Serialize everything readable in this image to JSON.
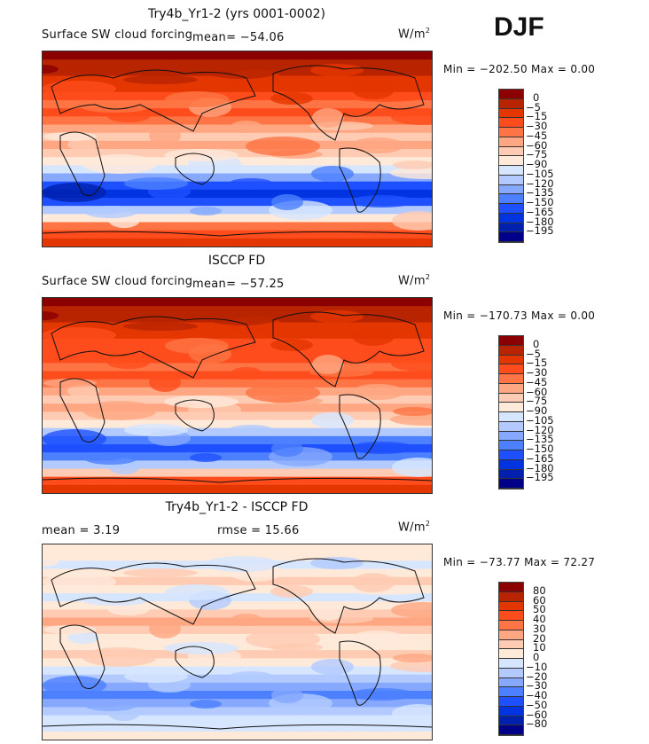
{
  "season": "DJF",
  "units": {
    "base": "W/m",
    "exp": "2"
  },
  "panels": [
    {
      "title": "Try4b_Yr1-2 (yrs 0001-0002)",
      "subtitle": "Surface SW cloud forcing",
      "mean": "mean= −54.06",
      "minmax": "Min = −202.50 Max =    0.00",
      "levels": [
        "0",
        "−5",
        "−15",
        "−30",
        "−45",
        "−60",
        "−75",
        "−90",
        "−105",
        "−120",
        "−135",
        "−150",
        "−165",
        "−180",
        "−195"
      ]
    },
    {
      "title": "ISCCP FD",
      "subtitle": "Surface SW cloud forcing",
      "mean": "mean= −57.25",
      "minmax": "Min = −170.73 Max =    0.00",
      "levels": [
        "0",
        "−5",
        "−15",
        "−30",
        "−45",
        "−60",
        "−75",
        "−90",
        "−105",
        "−120",
        "−135",
        "−150",
        "−165",
        "−180",
        "−195"
      ]
    },
    {
      "title": "Try4b_Yr1-2 - ISCCP FD",
      "mean": "mean =    3.19",
      "rmse": "rmse =   15.66",
      "minmax": "Min = −73.77 Max =   72.27",
      "levels": [
        "80",
        "60",
        "50",
        "40",
        "30",
        "20",
        "10",
        "0",
        "−10",
        "−20",
        "−30",
        "−40",
        "−50",
        "−60",
        "−80"
      ]
    }
  ],
  "colors": [
    "#8b0000",
    "#b82400",
    "#e43600",
    "#ff4c1c",
    "#ff7444",
    "#ffa682",
    "#ffcbb2",
    "#ffe9d9",
    "#d6e6ff",
    "#b2caff",
    "#86a8ff",
    "#4c80ff",
    "#1e50ff",
    "#0034e0",
    "#0020ae",
    "#000088"
  ]
}
